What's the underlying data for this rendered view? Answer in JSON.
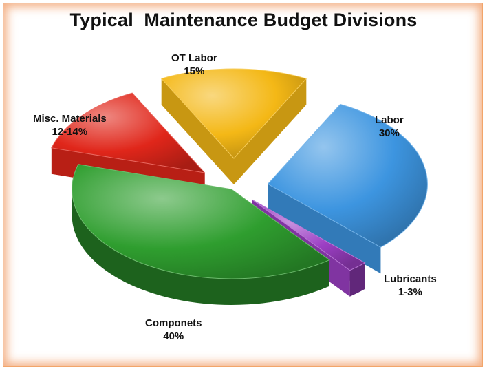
{
  "chart_data": {
    "type": "pie",
    "title": "Typical  Maintenance Budget Divisions",
    "slices": [
      {
        "label": "Labor",
        "value_text": "30%",
        "value": 30,
        "color": "#3d95e0"
      },
      {
        "label": "Lubricants",
        "value_text": "1-3%",
        "value": 2,
        "color": "#9c3fc4"
      },
      {
        "label": "Componets",
        "value_text": "40%",
        "value": 40,
        "color": "#2f9e2f"
      },
      {
        "label": "Misc. Materials",
        "value_text": "12-14%",
        "value": 13,
        "color": "#e0261a"
      },
      {
        "label": "OT Labor",
        "value_text": "15%",
        "value": 15,
        "color": "#f4b816"
      }
    ],
    "legend": "none"
  }
}
